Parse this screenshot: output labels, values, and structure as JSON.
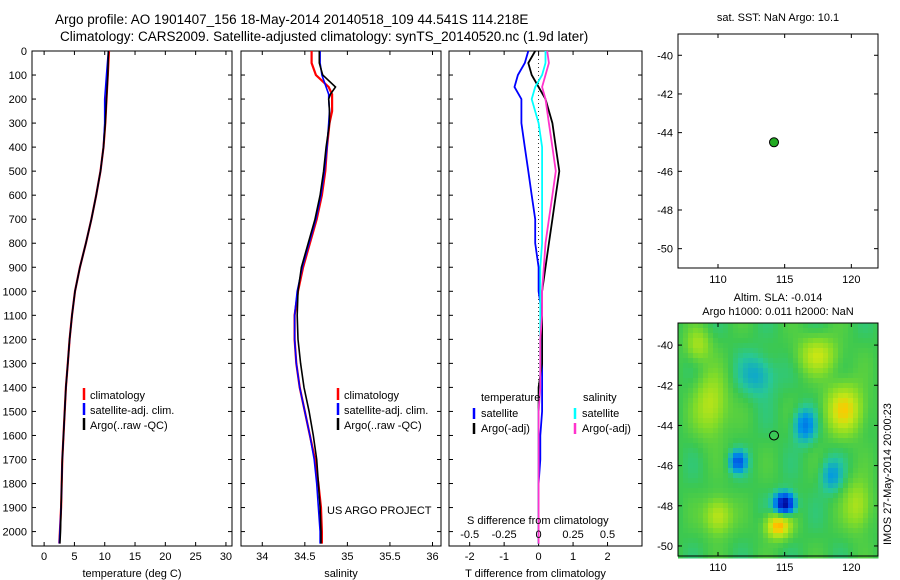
{
  "title_line1": "Argo profile: AO 1901407_156 18-May-2014 20140518_109 44.541S 114.218E",
  "title_line2": "Climatology: CARS2009. Satellite-adjusted climatology: synTS_20140520.nc (1.9d later)",
  "footer_stamp": "IMOS 27-May-2014 20:00:23",
  "colors": {
    "climatology": "#ff0000",
    "satellite": "#0000ff",
    "argo": "#000000",
    "salinity_sat": "#00ffff",
    "salinity_argo": "#ff33cc",
    "marker": "#22aa22"
  },
  "chart_data": [
    {
      "type": "line",
      "xlabel": "temperature (deg C)",
      "ylabel": "",
      "xlim": [
        -2,
        31
      ],
      "ylim": [
        2060,
        0
      ],
      "xticks": [
        0,
        5,
        10,
        15,
        20,
        25,
        30
      ],
      "yticks": [
        0,
        100,
        200,
        300,
        400,
        500,
        600,
        700,
        800,
        900,
        1000,
        1100,
        1200,
        1300,
        1400,
        1500,
        1600,
        1700,
        1800,
        1900,
        2000
      ],
      "y": [
        0,
        100,
        200,
        300,
        400,
        500,
        600,
        700,
        800,
        900,
        1000,
        1100,
        1200,
        1300,
        1400,
        1500,
        1600,
        1700,
        1800,
        1900,
        2000,
        2050
      ],
      "legend": [
        "climatology",
        "satellite-adj. clim.",
        "Argo(..raw -QC)"
      ],
      "series": [
        {
          "name": "climatology",
          "color": "#ff0000",
          "x": [
            10.7,
            10.5,
            10.3,
            10.1,
            9.8,
            9.3,
            8.6,
            7.8,
            6.9,
            5.9,
            5.1,
            4.6,
            4.2,
            3.9,
            3.6,
            3.4,
            3.2,
            3.0,
            2.9,
            2.8,
            2.6,
            2.5
          ]
        },
        {
          "name": "satellite-adj. clim.",
          "color": "#0000ff",
          "x": [
            10.6,
            10.3,
            10.0,
            10.0,
            9.8,
            9.3,
            8.6,
            7.8,
            6.9,
            5.9,
            5.1,
            4.6,
            4.2,
            3.9,
            3.6,
            3.4,
            3.2,
            3.0,
            2.9,
            2.8,
            2.6,
            2.5
          ]
        },
        {
          "name": "Argo(..raw -QC)",
          "color": "#000000",
          "x": [
            10.6,
            10.5,
            10.3,
            10.1,
            9.8,
            9.3,
            8.6,
            7.8,
            6.9,
            5.9,
            5.1,
            4.6,
            4.2,
            3.9,
            3.6,
            3.4,
            3.2,
            3.0,
            2.9,
            2.8,
            2.7,
            2.6
          ]
        }
      ]
    },
    {
      "type": "line",
      "xlabel": "salinity",
      "xlim": [
        33.75,
        36.1
      ],
      "ylim": [
        2060,
        0
      ],
      "xticks": [
        34,
        34.5,
        35,
        35.5,
        36
      ],
      "y": [
        0,
        50,
        100,
        150,
        180,
        200,
        250,
        300,
        400,
        500,
        600,
        700,
        800,
        900,
        1000,
        1100,
        1200,
        1300,
        1400,
        1500,
        1600,
        1700,
        1800,
        1900,
        2000,
        2050
      ],
      "legend": [
        "climatology",
        "satellite-adj. clim.",
        "Argo(..raw -QC)"
      ],
      "series": [
        {
          "name": "climatology",
          "color": "#ff0000",
          "x": [
            34.58,
            34.58,
            34.63,
            34.78,
            34.82,
            34.82,
            34.82,
            34.79,
            34.76,
            34.74,
            34.7,
            34.64,
            34.56,
            34.48,
            34.42,
            34.38,
            34.38,
            34.4,
            34.44,
            34.5,
            34.56,
            34.62,
            34.66,
            34.69,
            34.7,
            34.7
          ]
        },
        {
          "name": "satellite-adj. clim.",
          "color": "#0000ff",
          "x": [
            34.68,
            34.68,
            34.7,
            34.75,
            34.78,
            34.78,
            34.79,
            34.78,
            34.76,
            34.73,
            34.69,
            34.63,
            34.55,
            34.47,
            34.41,
            34.38,
            34.38,
            34.4,
            34.44,
            34.5,
            34.56,
            34.61,
            34.64,
            34.66,
            34.68,
            34.68
          ]
        },
        {
          "name": "Argo(..raw -QC)",
          "color": "#000000",
          "x": [
            34.67,
            34.67,
            34.71,
            34.86,
            34.8,
            34.78,
            34.79,
            34.79,
            34.75,
            34.72,
            34.68,
            34.62,
            34.54,
            34.46,
            34.42,
            34.41,
            34.42,
            34.45,
            34.49,
            34.55,
            34.6,
            34.64,
            34.66,
            34.68,
            34.69,
            34.69
          ]
        }
      ]
    },
    {
      "type": "line",
      "xlabel": "T difference from climatology",
      "top_axis_label": "S difference from climatology",
      "xlim": [
        -2.6,
        3.0
      ],
      "ylim": [
        2060,
        0
      ],
      "xticks": [
        -2,
        -1,
        0,
        1,
        2
      ],
      "top_ticks": [
        {
          "v": -0.5,
          "label": "-0.5"
        },
        {
          "v": -0.25,
          "label": "-0.25"
        },
        {
          "v": 0,
          "label": "0"
        },
        {
          "v": 0.25,
          "label": "0.25"
        },
        {
          "v": 0.5,
          "label": "0.5"
        }
      ],
      "y": [
        0,
        50,
        100,
        150,
        200,
        300,
        400,
        500,
        600,
        700,
        800,
        900,
        1000,
        1100,
        1200,
        1300,
        1400,
        1500,
        1600,
        1700,
        1800,
        1900,
        2000,
        2050
      ],
      "legend_left_title": "temperature",
      "legend_right_title": "salinity",
      "legend_left": [
        "satellite",
        "Argo(-adj)"
      ],
      "legend_right": [
        "satellite",
        "Argo(-adj)"
      ],
      "series": [
        {
          "name": "temperature satellite",
          "color": "#0000ff",
          "x": [
            -0.3,
            -0.4,
            -0.6,
            -0.7,
            -0.5,
            -0.5,
            -0.4,
            -0.3,
            -0.2,
            -0.1,
            -0.1,
            0.0,
            0.0,
            0.1,
            0.1,
            0.1,
            0.1,
            0.1,
            0.05,
            0.05,
            0.0,
            0.0,
            0.0,
            0.0
          ]
        },
        {
          "name": "temperature Argo(-adj)",
          "color": "#000000",
          "x": [
            -0.1,
            -0.3,
            -0.2,
            0.0,
            0.2,
            0.4,
            0.5,
            0.6,
            0.5,
            0.4,
            0.3,
            0.2,
            0.1,
            0.1,
            0.1,
            0.1,
            0.0,
            0.0,
            0.0,
            0.0,
            0.0,
            0.0,
            0.0,
            0.0
          ]
        },
        {
          "name": "salinity satellite",
          "color": "#00ffff",
          "x": [
            0.2,
            0.2,
            0.1,
            -0.1,
            -0.2,
            0.0,
            0.1,
            0.1,
            0.1,
            0.1,
            0.1,
            0.05,
            0.05,
            0.05,
            0.05,
            0.05,
            0.05,
            0.0,
            0.0,
            0.0,
            0.0,
            0.0,
            0.0,
            0.0
          ]
        },
        {
          "name": "salinity Argo(-adj)",
          "color": "#ff33cc",
          "x": [
            0.25,
            0.3,
            0.2,
            0.1,
            0.2,
            0.3,
            0.4,
            0.5,
            0.4,
            0.3,
            0.2,
            0.15,
            0.1,
            0.1,
            0.05,
            0.05,
            0.05,
            0.0,
            0.0,
            0.0,
            0.0,
            0.0,
            0.0,
            0.0
          ]
        }
      ]
    },
    {
      "type": "scatter",
      "title": "sat. SST: NaN Argo: 10.1",
      "xlim": [
        107,
        122
      ],
      "ylim": [
        -51,
        -38.9
      ],
      "xticks": [
        110,
        115,
        120
      ],
      "yticks": [
        -40,
        -42,
        -44,
        -46,
        -48,
        -50
      ],
      "points": [
        {
          "x": 114.2,
          "y": -44.5
        }
      ]
    },
    {
      "type": "heatmap",
      "title_line1": "Altim. SLA: -0.014",
      "title_line2": "Argo h1000: 0.011 h2000: NaN",
      "xlim": [
        107,
        122
      ],
      "ylim": [
        -50.5,
        -38.9
      ],
      "xticks": [
        110,
        115,
        120
      ],
      "yticks": [
        -40,
        -42,
        -44,
        -46,
        -48,
        -50
      ],
      "marker": {
        "x": 114.2,
        "y": -44.5
      },
      "blobs": [
        {
          "x": 115,
          "y": -47.9,
          "sx": 0.7,
          "sy": 0.5,
          "v": -1.6
        },
        {
          "x": 114.5,
          "y": -49.0,
          "sx": 0.9,
          "sy": 0.6,
          "v": 0.9
        },
        {
          "x": 119.5,
          "y": -43.2,
          "sx": 1.4,
          "sy": 1.2,
          "v": 0.7
        },
        {
          "x": 109.5,
          "y": -43.0,
          "sx": 1.2,
          "sy": 1.5,
          "v": 0.5
        },
        {
          "x": 117.5,
          "y": -40.5,
          "sx": 1.5,
          "sy": 0.9,
          "v": 0.5
        },
        {
          "x": 111.5,
          "y": -45.8,
          "sx": 0.6,
          "sy": 0.5,
          "v": -0.8
        },
        {
          "x": 116.5,
          "y": -44.0,
          "sx": 0.8,
          "sy": 0.8,
          "v": -0.6
        },
        {
          "x": 110.0,
          "y": -48.5,
          "sx": 1.0,
          "sy": 0.9,
          "v": 0.55
        },
        {
          "x": 120.5,
          "y": -48.0,
          "sx": 1.0,
          "sy": 1.2,
          "v": 0.45
        },
        {
          "x": 113.0,
          "y": -41.5,
          "sx": 1.3,
          "sy": 1.0,
          "v": -0.35
        },
        {
          "x": 108.5,
          "y": -40.0,
          "sx": 0.9,
          "sy": 0.8,
          "v": 0.4
        },
        {
          "x": 118.5,
          "y": -46.5,
          "sx": 0.8,
          "sy": 0.8,
          "v": -0.4
        }
      ]
    }
  ]
}
